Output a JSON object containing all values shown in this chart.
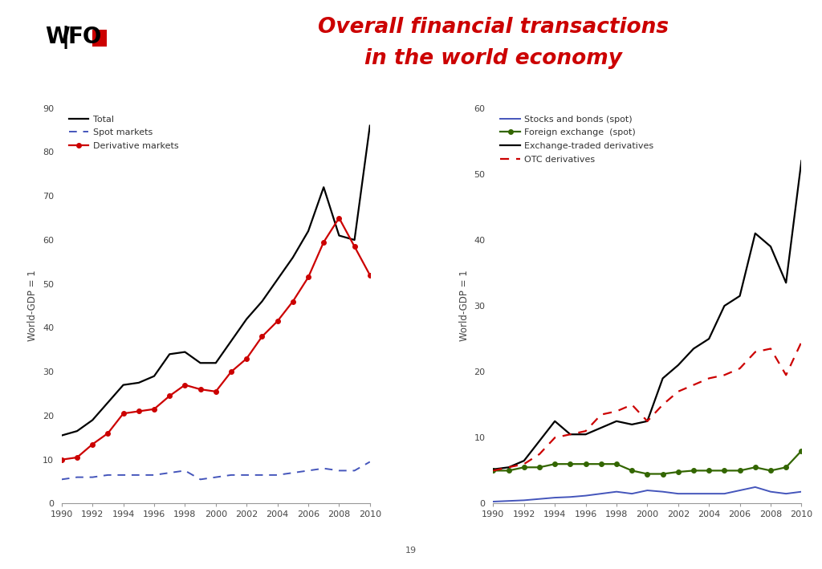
{
  "title_line1": "Overall financial transactions",
  "title_line2": "in the world economy",
  "title_color": "#cc0000",
  "separator_color": "#cc0000",
  "page_number": "19",
  "left_chart": {
    "years": [
      1990,
      1991,
      1992,
      1993,
      1994,
      1995,
      1996,
      1997,
      1998,
      1999,
      2000,
      2001,
      2002,
      2003,
      2004,
      2005,
      2006,
      2007,
      2008,
      2009,
      2010
    ],
    "total": [
      15.5,
      16.5,
      19.0,
      23.0,
      27.0,
      27.5,
      29.0,
      34.0,
      34.5,
      32.0,
      32.0,
      37.0,
      42.0,
      46.0,
      51.0,
      56.0,
      62.0,
      72.0,
      61.0,
      60.0,
      86.0
    ],
    "spot_markets": [
      5.5,
      6.0,
      6.0,
      6.5,
      6.5,
      6.5,
      6.5,
      7.0,
      7.5,
      5.5,
      6.0,
      6.5,
      6.5,
      6.5,
      6.5,
      7.0,
      7.5,
      8.0,
      7.5,
      7.5,
      9.5
    ],
    "derivative_markets": [
      10.0,
      10.5,
      13.5,
      16.0,
      20.5,
      21.0,
      21.5,
      24.5,
      27.0,
      26.0,
      25.5,
      30.0,
      33.0,
      38.0,
      41.5,
      46.0,
      51.5,
      59.5,
      65.0,
      58.5,
      52.0
    ],
    "ylabel": "World-GDP = 1",
    "ylim": [
      0,
      90
    ],
    "yticks": [
      0,
      10,
      20,
      30,
      40,
      50,
      60,
      70,
      80,
      90
    ]
  },
  "right_chart": {
    "years": [
      1990,
      1991,
      1992,
      1993,
      1994,
      1995,
      1996,
      1997,
      1998,
      1999,
      2000,
      2001,
      2002,
      2003,
      2004,
      2005,
      2006,
      2007,
      2008,
      2009,
      2010
    ],
    "stocks_bonds": [
      0.3,
      0.4,
      0.5,
      0.7,
      0.9,
      1.0,
      1.2,
      1.5,
      1.8,
      1.5,
      2.0,
      1.8,
      1.5,
      1.5,
      1.5,
      1.5,
      2.0,
      2.5,
      1.8,
      1.5,
      1.8
    ],
    "foreign_exchange": [
      5.0,
      5.0,
      5.5,
      5.5,
      6.0,
      6.0,
      6.0,
      6.0,
      6.0,
      5.0,
      4.5,
      4.5,
      4.8,
      5.0,
      5.0,
      5.0,
      5.0,
      5.5,
      5.0,
      5.5,
      8.0
    ],
    "exchange_traded": [
      5.2,
      5.5,
      6.5,
      9.5,
      12.5,
      10.5,
      10.5,
      11.5,
      12.5,
      12.0,
      12.5,
      19.0,
      21.0,
      23.5,
      25.0,
      30.0,
      31.5,
      41.0,
      39.0,
      33.5,
      52.0
    ],
    "otc_derivatives": [
      5.0,
      5.5,
      6.0,
      7.5,
      10.0,
      10.5,
      11.0,
      13.5,
      14.0,
      15.0,
      12.5,
      15.0,
      17.0,
      18.0,
      19.0,
      19.5,
      20.5,
      23.0,
      23.5,
      19.5,
      24.5
    ],
    "ylabel": "World-GDP = 1",
    "ylim": [
      0,
      60
    ],
    "yticks": [
      0,
      10,
      20,
      30,
      40,
      50,
      60
    ]
  }
}
